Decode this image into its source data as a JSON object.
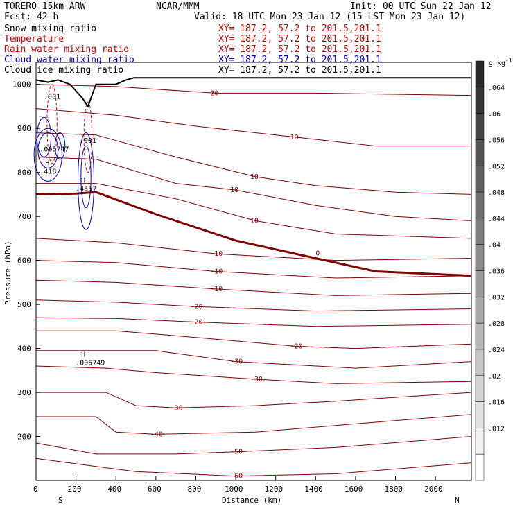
{
  "header": {
    "model": "TORERO  15km ARW",
    "center": "NCAR/MMM",
    "init": "Init: 00 UTC Sun 22 Jan 12",
    "fcst": "Fcst:   42 h",
    "valid": "Valid: 18 UTC Mon 23 Jan 12 (15 LST Mon 23 Jan 12)"
  },
  "fields": [
    {
      "name": "Snow mixing ratio",
      "xy": "",
      "color": "#000000"
    },
    {
      "name": "Temperature",
      "xy": "XY= 187.2, 57.2 to 201.5,201.1",
      "color": "#cc0000"
    },
    {
      "name": "Rain water mixing ratio",
      "xy": "XY= 187.2, 57.2 to 201.5,201.1",
      "color": "#cc0000"
    },
    {
      "name": "Cloud water mixing ratio",
      "xy": "XY= 187.2, 57.2 to 201.5,201.1",
      "color": "#0000cc"
    },
    {
      "name": "Cloud ice mixing ratio",
      "xy": "XY= 187.2, 57.2 to 201.5,201.1",
      "color": "#000000"
    }
  ],
  "field_extra": {
    "snow_xy": "XY= 187.2, 57.2 to 201.5,201.1"
  },
  "chart_data": {
    "type": "contour-cross-section",
    "xlabel": "Distance (km)",
    "ylabel": "Pressure (hPa)",
    "xlim": [
      0,
      2180
    ],
    "ylim": [
      1050,
      100
    ],
    "x_ticks": [
      "0",
      "200",
      "400",
      "600",
      "800",
      "1000",
      "1200",
      "1400",
      "1600",
      "1800",
      "2000"
    ],
    "y_ticks": [
      "200",
      "300",
      "400",
      "500",
      "600",
      "700",
      "800",
      "900",
      "1000"
    ],
    "left_end": "S",
    "right_end": "N",
    "colorbar": {
      "unit": "g kg",
      "unit_sup": "-1",
      "labels": [
        ".064",
        ".06",
        ".056",
        ".052",
        ".048",
        ".044",
        ".04",
        ".036",
        ".032",
        ".028",
        ".024",
        ".02",
        ".016",
        ".012"
      ]
    },
    "temperature_labels": [
      "-60",
      "-50",
      "-50",
      "-40",
      "-40",
      "-30",
      "-30",
      "-30",
      "-20",
      "-20",
      "-20",
      "-10",
      "-10",
      "-10",
      "0",
      "0",
      "0",
      "10",
      "10",
      "10",
      "20"
    ],
    "temperature_series": [
      {
        "label": "-60",
        "pts": [
          [
            0,
            150
          ],
          [
            500,
            120
          ],
          [
            1000,
            110
          ],
          [
            1500,
            115
          ],
          [
            2180,
            140
          ]
        ]
      },
      {
        "label": "-50",
        "pts": [
          [
            0,
            185
          ],
          [
            300,
            160
          ],
          [
            700,
            160
          ],
          [
            1000,
            165
          ],
          [
            1500,
            175
          ],
          [
            2180,
            200
          ]
        ]
      },
      {
        "label": "-40",
        "pts": [
          [
            0,
            245
          ],
          [
            300,
            245
          ],
          [
            400,
            210
          ],
          [
            600,
            205
          ],
          [
            1100,
            210
          ],
          [
            1500,
            225
          ],
          [
            2180,
            250
          ]
        ]
      },
      {
        "label": "-30",
        "pts": [
          [
            0,
            300
          ],
          [
            350,
            300
          ],
          [
            500,
            270
          ],
          [
            700,
            265
          ],
          [
            1100,
            270
          ],
          [
            1500,
            280
          ],
          [
            2180,
            300
          ]
        ]
      },
      {
        "label": "-30",
        "pts": [
          [
            0,
            360
          ],
          [
            350,
            355
          ],
          [
            600,
            345
          ],
          [
            1100,
            330
          ],
          [
            1500,
            320
          ],
          [
            2180,
            325
          ]
        ]
      },
      {
        "label": "-30",
        "pts": [
          [
            0,
            395
          ],
          [
            300,
            395
          ],
          [
            600,
            395
          ],
          [
            1000,
            370
          ],
          [
            1600,
            355
          ],
          [
            2180,
            370
          ]
        ]
      },
      {
        "label": "-20",
        "pts": [
          [
            0,
            440
          ],
          [
            400,
            440
          ],
          [
            800,
            425
          ],
          [
            1300,
            405
          ],
          [
            1600,
            400
          ],
          [
            2180,
            410
          ]
        ]
      },
      {
        "label": "-20",
        "pts": [
          [
            0,
            470
          ],
          [
            400,
            468
          ],
          [
            800,
            460
          ],
          [
            1400,
            450
          ],
          [
            2180,
            455
          ]
        ]
      },
      {
        "label": "-20",
        "pts": [
          [
            0,
            510
          ],
          [
            400,
            505
          ],
          [
            800,
            495
          ],
          [
            1400,
            485
          ],
          [
            2180,
            490
          ]
        ]
      },
      {
        "label": "-10",
        "pts": [
          [
            0,
            555
          ],
          [
            400,
            550
          ],
          [
            900,
            535
          ],
          [
            1500,
            520
          ],
          [
            2180,
            525
          ]
        ]
      },
      {
        "label": "-10",
        "pts": [
          [
            0,
            600
          ],
          [
            400,
            595
          ],
          [
            900,
            575
          ],
          [
            1500,
            560
          ],
          [
            2180,
            565
          ]
        ]
      },
      {
        "label": "-10",
        "pts": [
          [
            0,
            650
          ],
          [
            400,
            640
          ],
          [
            900,
            615
          ],
          [
            1500,
            600
          ],
          [
            2180,
            605
          ]
        ]
      },
      {
        "label": "10",
        "pts": [
          [
            0,
            775
          ],
          [
            300,
            775
          ],
          [
            700,
            740
          ],
          [
            1100,
            690
          ],
          [
            1500,
            660
          ],
          [
            2180,
            650
          ]
        ]
      },
      {
        "label": "10",
        "pts": [
          [
            0,
            835
          ],
          [
            300,
            830
          ],
          [
            700,
            775
          ],
          [
            1000,
            760
          ],
          [
            1400,
            725
          ],
          [
            1800,
            700
          ],
          [
            2180,
            690
          ]
        ]
      },
      {
        "label": "10",
        "pts": [
          [
            0,
            890
          ],
          [
            300,
            885
          ],
          [
            700,
            835
          ],
          [
            1100,
            790
          ],
          [
            1400,
            770
          ],
          [
            1800,
            755
          ],
          [
            2180,
            750
          ]
        ]
      },
      {
        "label": "10",
        "pts": [
          [
            0,
            945
          ],
          [
            400,
            930
          ],
          [
            800,
            905
          ],
          [
            1300,
            880
          ],
          [
            1700,
            860
          ],
          [
            2180,
            860
          ]
        ]
      },
      {
        "label": "20",
        "pts": [
          [
            0,
            1000
          ],
          [
            400,
            995
          ],
          [
            900,
            980
          ],
          [
            1400,
            980
          ],
          [
            2180,
            975
          ]
        ]
      }
    ],
    "freezing_line": [
      [
        0,
        750
      ],
      [
        200,
        752
      ],
      [
        300,
        755
      ],
      [
        600,
        705
      ],
      [
        1000,
        645
      ],
      [
        1400,
        605
      ],
      [
        1700,
        575
      ],
      [
        2180,
        565
      ]
    ],
    "terrain": [
      [
        0,
        1010
      ],
      [
        60,
        1005
      ],
      [
        110,
        1010
      ],
      [
        170,
        1000
      ],
      [
        230,
        970
      ],
      [
        260,
        950
      ],
      [
        300,
        1000
      ],
      [
        400,
        1000
      ],
      [
        450,
        1010
      ],
      [
        490,
        1015
      ],
      [
        2180,
        1015
      ]
    ],
    "cloud_water_contours": [
      {
        "cx": 60,
        "cy": 840,
        "rx": 70,
        "ry": 60
      },
      {
        "cx": 60,
        "cy": 850,
        "rx": 50,
        "ry": 40
      },
      {
        "cx": 250,
        "cy": 780,
        "rx": 40,
        "ry": 110
      },
      {
        "cx": 250,
        "cy": 790,
        "rx": 25,
        "ry": 70
      },
      {
        "cx": 40,
        "cy": 880,
        "rx": 35,
        "ry": 45
      },
      {
        "cx": 120,
        "cy": 860,
        "rx": 25,
        "ry": 30
      }
    ],
    "rain_contours": [
      {
        "cx": 80,
        "cy": 910,
        "rx": 25,
        "ry": 90
      },
      {
        "cx": 260,
        "cy": 880,
        "rx": 20,
        "ry": 80
      }
    ],
    "ice_patch": {
      "x": 290,
      "p_top": 340,
      "p_bot": 430
    },
    "extrema": [
      {
        "kind": "H",
        "value": ".006749",
        "x": 240,
        "p": 375
      },
      {
        "kind": "H",
        "value": ".4557",
        "x": 240,
        "p": 770
      },
      {
        "kind": "H",
        "value": ".418",
        "x": 60,
        "p": 810
      },
      {
        "kind": "",
        "value": ".005747",
        "x": 60,
        "p": 860
      },
      {
        "kind": "",
        "value": ".001",
        "x": 260,
        "p": 880
      },
      {
        "kind": "",
        "value": ".001",
        "x": 80,
        "p": 980
      }
    ]
  }
}
